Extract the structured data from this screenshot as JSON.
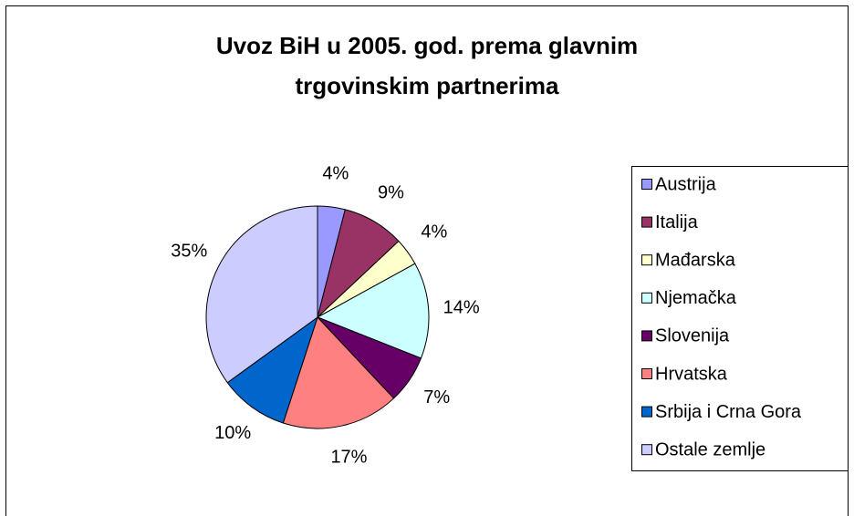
{
  "chart_data": {
    "type": "pie",
    "title": [
      "Uvoz BiH u 2005. god. prema glavnim",
      "trgovinskim partnerima"
    ],
    "categories": [
      "Austrija",
      "Italija",
      "Mađarska",
      "Njemačka",
      "Slovenija",
      "Hrvatska",
      "Srbija i Crna Gora",
      "Ostale zemlje"
    ],
    "values": [
      4,
      9,
      4,
      14,
      7,
      17,
      10,
      35
    ],
    "value_labels": [
      "4%",
      "9%",
      "4%",
      "14%",
      "7%",
      "17%",
      "10%",
      "35%"
    ],
    "colors": [
      "#9999ff",
      "#993366",
      "#ffffcc",
      "#ccffff",
      "#660066",
      "#ff8080",
      "#0066cc",
      "#ccccff"
    ],
    "legend": "right"
  }
}
